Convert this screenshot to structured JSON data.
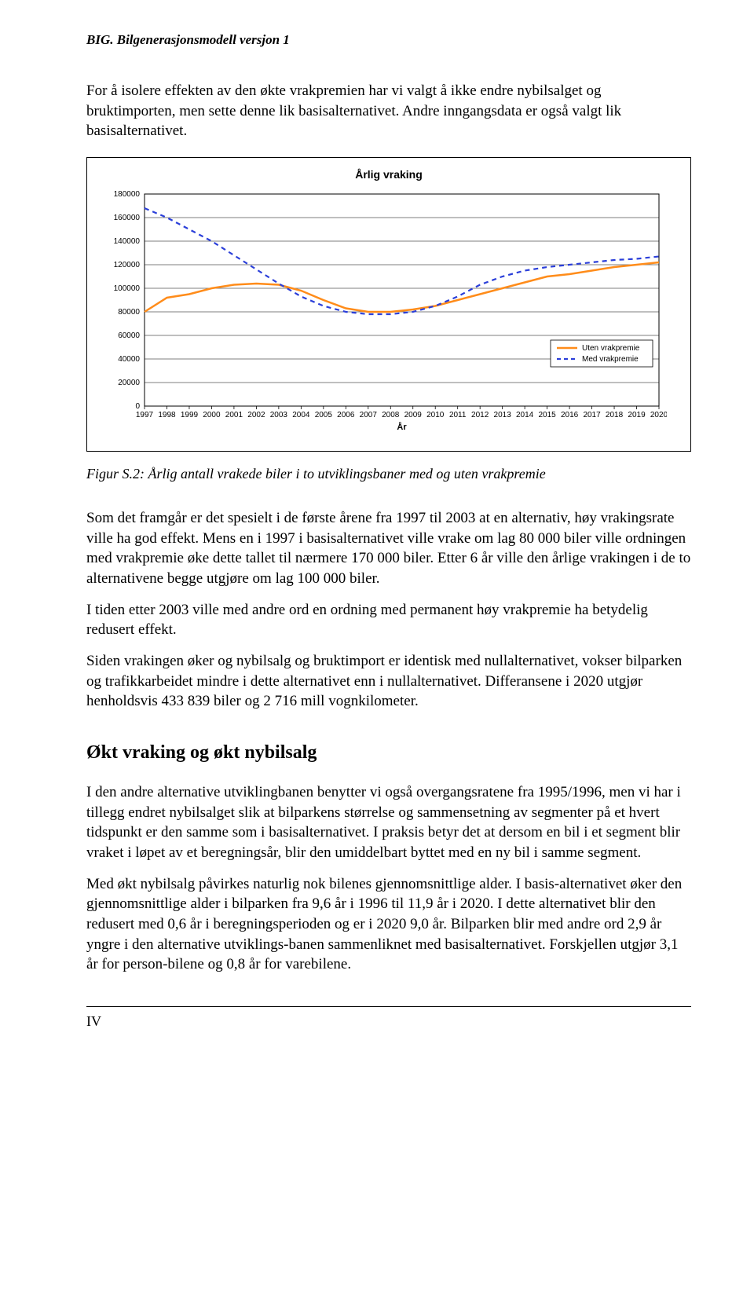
{
  "header": {
    "running_title": "BIG. Bilgenerasjonsmodell versjon 1"
  },
  "intro": {
    "p1": "For å isolere effekten av den økte vrakpremien har vi valgt å ikke endre nybilsalget og bruktimporten, men sette denne lik basisalternativet. Andre inngangsdata er også valgt lik basisalternativet."
  },
  "chart": {
    "type": "line",
    "title": "Årlig vraking",
    "x_label": "År",
    "years": [
      1997,
      1998,
      1999,
      2000,
      2001,
      2002,
      2003,
      2004,
      2005,
      2006,
      2007,
      2008,
      2009,
      2010,
      2011,
      2012,
      2013,
      2014,
      2015,
      2016,
      2017,
      2018,
      2019,
      2020
    ],
    "ylim": [
      0,
      180000
    ],
    "ytick_step": 20000,
    "yticks": [
      "0",
      "20000",
      "40000",
      "60000",
      "80000",
      "100000",
      "120000",
      "140000",
      "160000",
      "180000"
    ],
    "series": [
      {
        "name": "Uten vrakpremie",
        "color": "#ff8c1a",
        "dash": "none",
        "width": 2.5,
        "values": [
          80000,
          92000,
          95000,
          100000,
          103000,
          104000,
          103000,
          98000,
          90000,
          83000,
          80000,
          80000,
          82000,
          85000,
          90000,
          95000,
          100000,
          105000,
          110000,
          112000,
          115000,
          118000,
          120000,
          122000
        ]
      },
      {
        "name": "Med vrakpremie",
        "color": "#2b3fd9",
        "dash": "6,5",
        "width": 2.2,
        "values": [
          168000,
          160000,
          150000,
          140000,
          128000,
          116000,
          104000,
          93000,
          85000,
          80000,
          78000,
          78000,
          80000,
          85000,
          93000,
          103000,
          110000,
          115000,
          118000,
          120000,
          122000,
          124000,
          125000,
          127000
        ]
      }
    ],
    "legend": {
      "items": [
        "Uten vrakpremie",
        "Med vrakpremie"
      ],
      "border_color": "#000000",
      "bg": "#ffffff"
    },
    "background_color": "#ffffff",
    "grid_color": "#000000",
    "axis_color": "#000000",
    "tick_fontsize": 10,
    "title_fontsize": 14
  },
  "figure_caption": "Figur S.2: Årlig antall vrakede biler i to utviklingsbaner med og uten vrakpremie",
  "body": {
    "p1": "Som det framgår er det spesielt i de første årene fra 1997 til 2003 at en alternativ, høy vrakingsrate ville ha god effekt. Mens en i 1997 i basisalternativet ville vrake om lag 80 000 biler ville ordningen med vrakpremie øke dette tallet til nærmere 170 000 biler. Etter 6 år ville den årlige vrakingen i de to alternativene begge utgjøre om lag 100 000 biler.",
    "p2": "I tiden etter 2003 ville med andre ord en ordning med permanent høy vrakpremie ha betydelig redusert effekt.",
    "p3": "Siden vrakingen øker og nybilsalg og bruktimport er identisk med nullalternativet, vokser bilparken og trafikkarbeidet mindre i dette alternativet enn i nullalternativet. Differansene i 2020 utgjør henholdsvis 433 839 biler og 2 716 mill vognkilometer."
  },
  "section2": {
    "heading": "Økt vraking og økt nybilsalg",
    "p1": "I den andre alternative utviklingbanen benytter vi også overgangsratene fra 1995/1996, men vi har i tillegg endret nybilsalget slik at bilparkens størrelse og sammensetning av segmenter på et hvert tidspunkt er den samme som i basisalternativet. I praksis betyr det at dersom en bil i et segment blir vraket i løpet av et beregningsår, blir den umiddelbart byttet med en ny bil i samme segment.",
    "p2": "Med økt nybilsalg påvirkes naturlig nok bilenes gjennomsnittlige alder. I basis-alternativet øker den gjennomsnittlige alder i bilparken fra 9,6 år i 1996 til 11,9 år i 2020. I dette alternativet blir den redusert med 0,6 år i beregningsperioden og er i 2020 9,0 år. Bilparken blir med andre ord 2,9 år yngre i den alternative utviklings-banen sammenliknet med basisalternativet. Forskjellen utgjør 3,1 år for person-bilene og 0,8 år for varebilene."
  },
  "footer": {
    "page": "IV"
  }
}
